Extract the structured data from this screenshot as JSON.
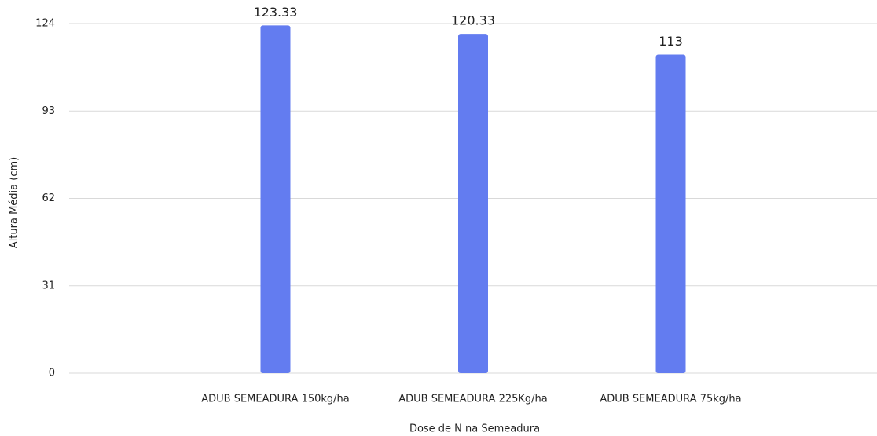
{
  "chart_data": {
    "type": "bar",
    "categories": [
      "ADUB SEMEADURA 150kg/ha",
      "ADUB SEMEADURA 225Kg/ha",
      "ADUB SEMEADURA 75kg/ha"
    ],
    "values": [
      123.33,
      120.33,
      113
    ],
    "color": "#637cf0",
    "xlabel": "Dose de N na Semeadura",
    "ylabel": "Altura Média (cm)",
    "ylim": [
      0,
      124
    ],
    "yticks": [
      0,
      31,
      62,
      93,
      124
    ],
    "grid": true
  }
}
